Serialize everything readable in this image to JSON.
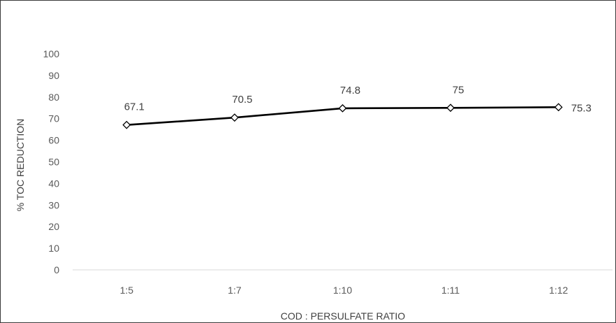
{
  "chart_data": {
    "type": "line",
    "title": "",
    "xlabel": "COD : PERSULFATE RATIO",
    "ylabel": "% TOC REDUCTION",
    "categories": [
      "1:5",
      "1:7",
      "1:10",
      "1:11",
      "1:12"
    ],
    "series": [
      {
        "values": [
          67.1,
          70.5,
          74.8,
          75,
          75.3
        ],
        "labels": [
          "67.1",
          "70.5",
          "74.8",
          "75",
          "75.3"
        ],
        "marker": "diamond"
      }
    ],
    "ylim": [
      0,
      100
    ],
    "yticks": [
      "0",
      "10",
      "20",
      "30",
      "40",
      "50",
      "60",
      "70",
      "80",
      "90",
      "100"
    ],
    "grid": false,
    "legend": "none"
  },
  "colors": {
    "line": "#000000",
    "axis": "#d9d9d9",
    "frame": "#3a3a3a",
    "text": "#595959"
  }
}
